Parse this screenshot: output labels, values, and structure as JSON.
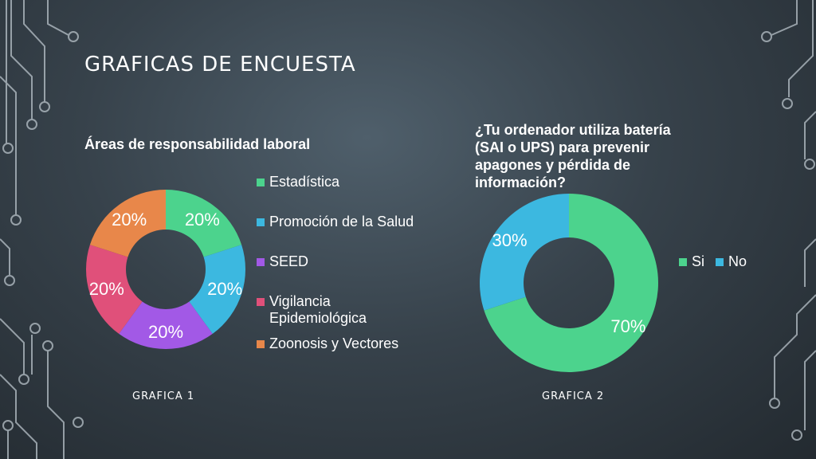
{
  "slide": {
    "title": "GRAFICAS DE ENCUESTA",
    "caption_1": "GRAFICA 1",
    "caption_2": "GRAFICA 2"
  },
  "colors": {
    "estadistica": "#4cd38d",
    "promocion": "#3cb8e0",
    "seed": "#a259e6",
    "vigilancia": "#e0507a",
    "zoonosis": "#e8874a",
    "circuit": "#b9c3ca"
  },
  "chart_data": [
    {
      "type": "pie",
      "title": "Áreas de responsabilidad laboral",
      "categories": [
        "Estadística",
        "Promoción de la Salud",
        "SEED",
        "Vigilancia Epidemiológica",
        "Zoonosis y Vectores"
      ],
      "values": [
        20,
        20,
        20,
        20,
        20
      ],
      "data_labels": [
        "20%",
        "20%",
        "20%",
        "20%",
        "20%"
      ],
      "legend": "right",
      "style": "donut"
    },
    {
      "type": "pie",
      "title": "¿Tu ordenador utiliza batería (SAI o UPS) para prevenir apagones y pérdida de información?",
      "categories": [
        "Si",
        "No"
      ],
      "values": [
        70,
        30
      ],
      "data_labels": [
        "70%",
        "30%"
      ],
      "legend": "right",
      "style": "donut"
    }
  ]
}
